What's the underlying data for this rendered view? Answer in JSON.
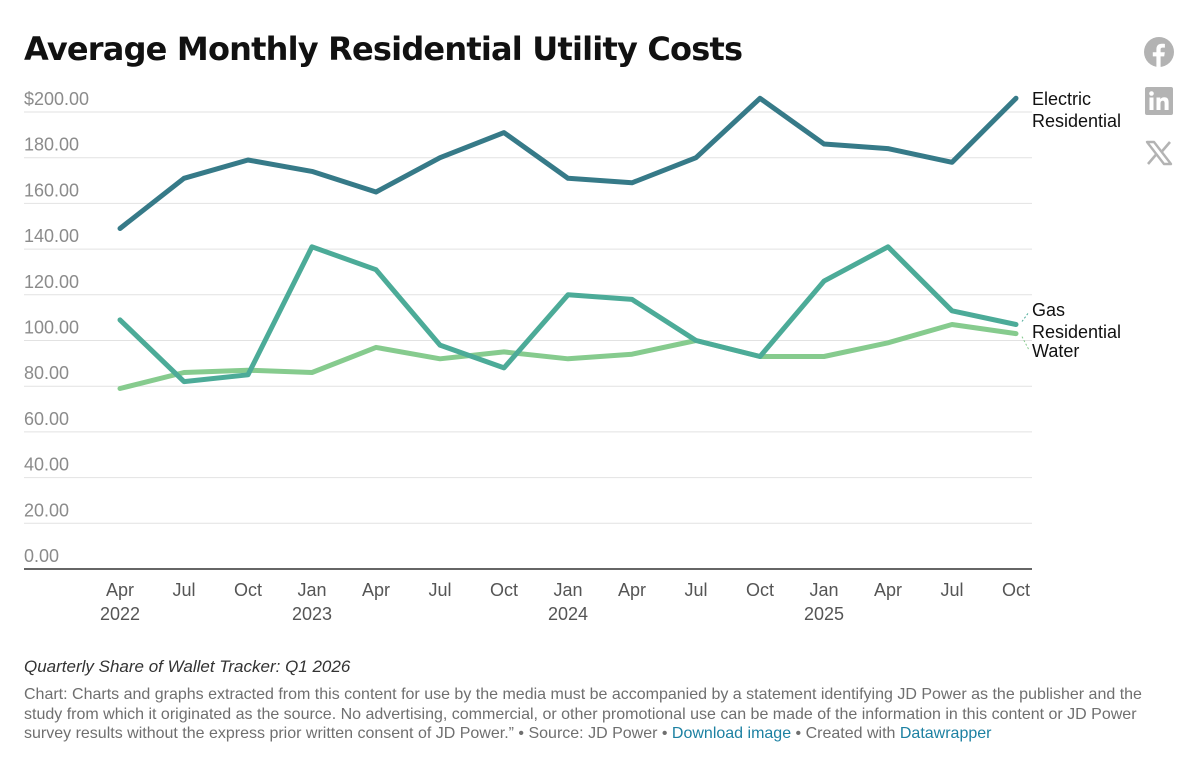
{
  "title": "Average Monthly Residential Utility Costs",
  "subtitle": "Quarterly Share of Wallet Tracker: Q1 2026",
  "notes": {
    "chart_prefix": "Chart: ",
    "chart_text": "Charts and graphs extracted from this content for use by the media must be accompanied by a statement identifying JD Power as the publisher and the study from which it originated as the source. No advertising, commercial, or other promotional use can be made of the information in this content or JD Power survey results without the express prior written consent of JD Power.”",
    "source_prefix": " • Source: ",
    "source": "JD Power",
    "separator": " • ",
    "download_link": "Download image",
    "created_prefix": " • Created with ",
    "created_link": "Datawrapper"
  },
  "social": [
    {
      "name": "facebook-icon",
      "label": "Facebook"
    },
    {
      "name": "linkedin-icon",
      "label": "LinkedIn"
    },
    {
      "name": "x-icon",
      "label": "X"
    }
  ],
  "colors": {
    "electric": "#367a88",
    "gas": "#4cab98",
    "water": "#86cb8e",
    "grid": "#e2e2e2",
    "baseline": "#333333"
  },
  "chart_data": {
    "type": "line",
    "title": "Average Monthly Residential Utility Costs",
    "xlabel": "",
    "ylabel": "",
    "ylim": [
      0,
      200
    ],
    "grid": true,
    "y_ticks": [
      "$200.00",
      "180.00",
      "160.00",
      "140.00",
      "120.00",
      "100.00",
      "80.00",
      "60.00",
      "40.00",
      "20.00",
      "0.00"
    ],
    "y_tick_values": [
      200,
      180,
      160,
      140,
      120,
      100,
      80,
      60,
      40,
      20,
      0
    ],
    "x_ticks": [
      {
        "label": "Apr",
        "year": "2022"
      },
      {
        "label": "Jul",
        "year": ""
      },
      {
        "label": "Oct",
        "year": ""
      },
      {
        "label": "Jan",
        "year": "2023"
      },
      {
        "label": "Apr",
        "year": ""
      },
      {
        "label": "Jul",
        "year": ""
      },
      {
        "label": "Oct",
        "year": ""
      },
      {
        "label": "Jan",
        "year": "2024"
      },
      {
        "label": "Apr",
        "year": ""
      },
      {
        "label": "Jul",
        "year": ""
      },
      {
        "label": "Oct",
        "year": ""
      },
      {
        "label": "Jan",
        "year": "2025"
      },
      {
        "label": "Apr",
        "year": ""
      },
      {
        "label": "Jul",
        "year": ""
      },
      {
        "label": "Oct",
        "year": ""
      }
    ],
    "categories": [
      "Apr 2022",
      "Jul 2022",
      "Oct 2022",
      "Jan 2023",
      "Apr 2023",
      "Jul 2023",
      "Oct 2023",
      "Jan 2024",
      "Apr 2024",
      "Jul 2024",
      "Oct 2024",
      "Jan 2025",
      "Apr 2025",
      "Jul 2025",
      "Oct 2025"
    ],
    "series": [
      {
        "key": "electric",
        "name": "Electric Residential",
        "label_lines": [
          "Electric",
          "Residential"
        ],
        "values": [
          149,
          171,
          179,
          174,
          165,
          180,
          191,
          171,
          169,
          180,
          206,
          186,
          184,
          178,
          206
        ]
      },
      {
        "key": "gas",
        "name": "Gas Residential",
        "label_lines": [
          "Gas",
          "Residential"
        ],
        "values": [
          109,
          82,
          85,
          141,
          131,
          98,
          88,
          120,
          118,
          100,
          93,
          126,
          141,
          113,
          107
        ]
      },
      {
        "key": "water",
        "name": "Water",
        "label_lines": [
          "Water"
        ],
        "values": [
          79,
          86,
          87,
          86,
          97,
          92,
          95,
          92,
          94,
          100,
          93,
          93,
          99,
          107,
          103
        ]
      }
    ]
  }
}
